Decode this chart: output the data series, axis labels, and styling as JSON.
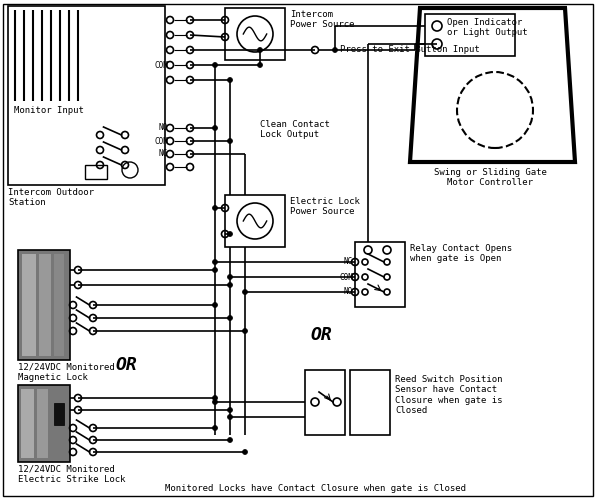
{
  "bg_color": "#ffffff",
  "lc": "#000000",
  "lw": 1.2,
  "fig_w": 5.96,
  "fig_h": 5.0,
  "dpi": 100,
  "labels": {
    "monitor_input": "Monitor Input",
    "intercom_outdoor": "Intercom Outdoor\nStation",
    "intercom_power": "Intercom\nPower Source",
    "press_exit": "Press to Exit Button Input",
    "clean_contact": "Clean Contact\nLock Output",
    "electric_lock_ps": "Electric Lock\nPower Source",
    "magnetic_lock": "12/24VDC Monitored\nMagnetic Lock",
    "electric_strike": "12/24VDC Monitored\nElectric Strike Lock",
    "or1": "OR",
    "or2": "OR",
    "swing_gate": "Swing or Sliding Gate\nMotor Controller",
    "open_indicator": "Open Indicator\nor Light Output",
    "relay_contact": "Relay Contact Opens\nwhen gate is Open",
    "reed_switch": "Reed Switch Position\nSensor have Contact\nClosure when gate is\nClosed",
    "monitored_locks": "Monitored Locks have Contact Closure when gate is Closed",
    "nc": "NC",
    "com": "COM",
    "no": "NO"
  },
  "fs": 6.5,
  "fs_small": 5.5,
  "fs_or": 13
}
